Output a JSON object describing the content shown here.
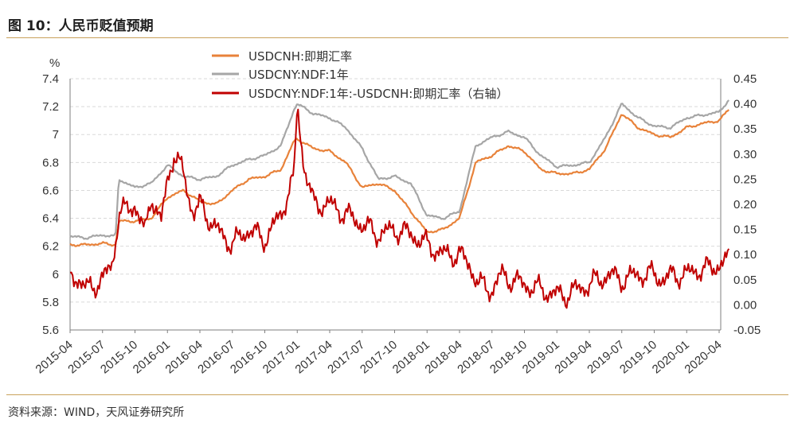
{
  "header": {
    "title": "图 10：人民币贬值预期"
  },
  "footer": {
    "source": "资料来源：WIND，天风证券研究所"
  },
  "colors": {
    "orange": "#e8823a",
    "gray": "#a6a6a6",
    "red": "#c00000",
    "accent_rule": "#c9a25b"
  },
  "chart_data": {
    "type": "line",
    "title": "图 10：人民币贬值预期",
    "y_unit_label": "%",
    "x_tick_labels": [
      "2015-04",
      "2015-07",
      "2015-10",
      "2016-01",
      "2016-04",
      "2016-07",
      "2016-10",
      "2017-01",
      "2017-04",
      "2017-07",
      "2017-10",
      "2018-01",
      "2018-04",
      "2018-07",
      "2018-10",
      "2019-01",
      "2019-04",
      "2019-07",
      "2019-10",
      "2020-01",
      "2020-04"
    ],
    "y_left": {
      "min": 5.6,
      "max": 7.4,
      "ticks": [
        "5.6",
        "5.8",
        "6",
        "6.2",
        "6.4",
        "6.6",
        "6.8",
        "7",
        "7.2",
        "7.4"
      ]
    },
    "y_right": {
      "min": -0.05,
      "max": 0.45,
      "ticks": [
        "-0.05",
        "0.00",
        "0.05",
        "0.10",
        "0.15",
        "0.20",
        "0.25",
        "0.30",
        "0.35",
        "0.40",
        "0.45"
      ]
    },
    "grid": "horizontal dashed",
    "legend_position": "top",
    "series": [
      {
        "name": "USDCNH:即期汇率",
        "axis": "left",
        "color": "#e8823a",
        "x": [
          0,
          0.5,
          1,
          1.4,
          1.5,
          2,
          2.5,
          3,
          3.5,
          4,
          4.5,
          5,
          5.5,
          6,
          6.5,
          6.9,
          7,
          7.5,
          8,
          8.5,
          9,
          9.5,
          10,
          10.5,
          11,
          11.5,
          12,
          12.5,
          13,
          13.5,
          14,
          14.5,
          15,
          15.5,
          16,
          16.5,
          17,
          17.5,
          18,
          18.5,
          19,
          19.5,
          20,
          20.3
        ],
        "values": [
          6.21,
          6.21,
          6.22,
          6.21,
          6.38,
          6.38,
          6.4,
          6.55,
          6.6,
          6.52,
          6.5,
          6.6,
          6.68,
          6.7,
          6.75,
          6.95,
          6.97,
          6.9,
          6.88,
          6.8,
          6.62,
          6.65,
          6.6,
          6.45,
          6.3,
          6.32,
          6.4,
          6.8,
          6.85,
          6.92,
          6.88,
          6.75,
          6.72,
          6.72,
          6.75,
          6.9,
          7.15,
          7.05,
          7.0,
          6.98,
          7.05,
          7.08,
          7.1,
          7.18
        ]
      },
      {
        "name": "USDCNY:NDF:1年",
        "axis": "left",
        "color": "#a6a6a6",
        "x": [
          0,
          0.5,
          1,
          1.4,
          1.5,
          2,
          2.5,
          3,
          3.5,
          4,
          4.5,
          5,
          5.5,
          6,
          6.5,
          6.9,
          7,
          7.5,
          8,
          8.5,
          9,
          9.5,
          10,
          10.5,
          11,
          11.5,
          12,
          12.5,
          13,
          13.5,
          14,
          14.5,
          15,
          15.5,
          16,
          16.5,
          17,
          17.5,
          18,
          18.5,
          19,
          19.5,
          20,
          20.3
        ],
        "values": [
          6.27,
          6.26,
          6.28,
          6.27,
          6.68,
          6.62,
          6.65,
          6.78,
          6.7,
          6.68,
          6.7,
          6.78,
          6.82,
          6.85,
          6.92,
          7.18,
          7.22,
          7.15,
          7.12,
          7.05,
          6.9,
          6.68,
          6.7,
          6.65,
          6.42,
          6.4,
          6.45,
          6.92,
          6.98,
          7.02,
          6.98,
          6.85,
          6.77,
          6.78,
          6.8,
          6.98,
          7.22,
          7.12,
          7.06,
          7.05,
          7.12,
          7.14,
          7.16,
          7.25
        ]
      },
      {
        "name": "USDCNY:NDF:1年:-USDCNH:即期汇率（右轴）",
        "axis": "right",
        "color": "#c00000",
        "x": [
          0,
          0.3,
          0.5,
          1,
          1.3,
          1.5,
          2,
          2.3,
          2.5,
          2.8,
          3,
          3.2,
          3.5,
          3.8,
          4,
          4.5,
          5,
          5.5,
          6,
          6.5,
          6.7,
          6.9,
          7,
          7.2,
          7.5,
          8,
          8.5,
          9,
          9.5,
          10,
          10.5,
          11,
          11.5,
          12,
          12.3,
          12.6,
          13,
          13.3,
          13.6,
          14,
          14.5,
          15,
          15.3,
          15.6,
          16,
          16.3,
          16.6,
          17,
          17.5,
          18,
          18.3,
          18.6,
          19,
          19.3,
          19.6,
          20,
          20.3
        ],
        "values": [
          0.06,
          0.05,
          0.03,
          0.05,
          0.08,
          0.18,
          0.2,
          0.14,
          0.22,
          0.16,
          0.25,
          0.3,
          0.26,
          0.18,
          0.2,
          0.15,
          0.12,
          0.15,
          0.13,
          0.18,
          0.22,
          0.25,
          0.4,
          0.28,
          0.2,
          0.2,
          0.18,
          0.16,
          0.14,
          0.15,
          0.14,
          0.12,
          0.1,
          0.1,
          0.08,
          0.04,
          0.03,
          0.06,
          0.05,
          0.04,
          0.03,
          0.02,
          0.02,
          0.03,
          0.04,
          0.05,
          0.06,
          0.05,
          0.06,
          0.06,
          0.05,
          0.06,
          0.06,
          0.07,
          0.07,
          0.08,
          0.09
        ]
      }
    ]
  }
}
